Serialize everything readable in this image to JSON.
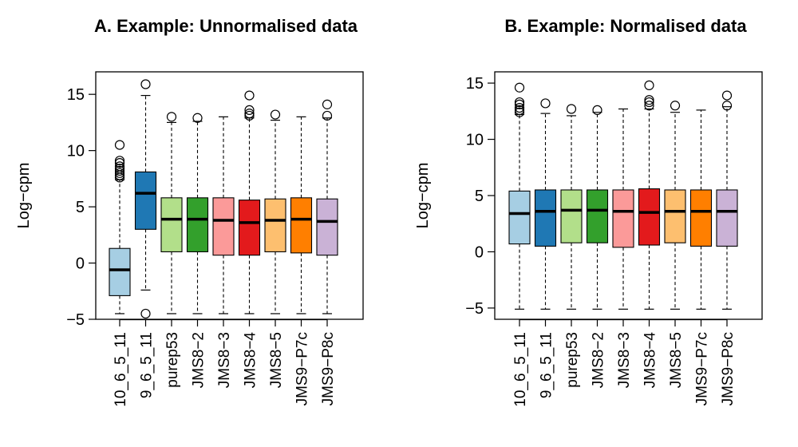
{
  "chart_data": [
    {
      "type": "box",
      "title": "A. Example: Unnormalised data",
      "ylabel": "Log−cpm",
      "ylim": [
        -5,
        17
      ],
      "yticks": [
        -5,
        0,
        5,
        10,
        15
      ],
      "ytick_labels": [
        "−5",
        "0",
        "5",
        "10",
        "15"
      ],
      "categories": [
        "10_6_5_11",
        "9_6_5_11",
        "purep53",
        "JMS8−2",
        "JMS8−3",
        "JMS8−4",
        "JMS8−5",
        "JMS9−P7c",
        "JMS9−P8c"
      ],
      "colors": [
        "#A6CEE3",
        "#1F78B4",
        "#B2DF8A",
        "#33A02C",
        "#FB9A99",
        "#E31A1C",
        "#FDBF6F",
        "#FF7F00",
        "#CAB2D6"
      ],
      "boxes": [
        {
          "low": -4.5,
          "q1": -2.9,
          "median": -0.6,
          "q3": 1.3,
          "high": 7.4,
          "outliers": [
            7.6,
            7.8,
            8.0,
            8.2,
            8.4,
            8.6,
            8.9,
            9.1,
            10.5
          ]
        },
        {
          "low": -2.4,
          "q1": 3.0,
          "median": 6.2,
          "q3": 8.1,
          "high": 14.9,
          "outliers": [
            -4.5,
            15.9
          ]
        },
        {
          "low": -4.5,
          "q1": 1.0,
          "median": 3.9,
          "q3": 5.8,
          "high": 12.5,
          "outliers": [
            13.0
          ]
        },
        {
          "low": -4.5,
          "q1": 1.0,
          "median": 3.9,
          "q3": 5.8,
          "high": 12.6,
          "outliers": [
            12.9
          ]
        },
        {
          "low": -4.5,
          "q1": 0.7,
          "median": 3.8,
          "q3": 5.8,
          "high": 13.0,
          "outliers": []
        },
        {
          "low": -4.5,
          "q1": 0.7,
          "median": 3.6,
          "q3": 5.6,
          "high": 12.9,
          "outliers": [
            13.1,
            13.3,
            13.6,
            14.9
          ]
        },
        {
          "low": -4.5,
          "q1": 1.0,
          "median": 3.8,
          "q3": 5.7,
          "high": 12.7,
          "outliers": [
            13.2
          ]
        },
        {
          "low": -4.5,
          "q1": 0.9,
          "median": 3.9,
          "q3": 5.8,
          "high": 13.0,
          "outliers": []
        },
        {
          "low": -4.5,
          "q1": 0.7,
          "median": 3.7,
          "q3": 5.7,
          "high": 12.9,
          "outliers": [
            13.1,
            14.1
          ]
        }
      ]
    },
    {
      "type": "box",
      "title": "B. Example: Normalised data",
      "ylabel": "Log−cpm",
      "ylim": [
        -6,
        16
      ],
      "yticks": [
        -5,
        0,
        5,
        10,
        15
      ],
      "ytick_labels": [
        "−5",
        "0",
        "5",
        "10",
        "15"
      ],
      "categories": [
        "10_6_5_11",
        "9_6_5_11",
        "purep53",
        "JMS8−2",
        "JMS8−3",
        "JMS8−4",
        "JMS8−5",
        "JMS9−P7c",
        "JMS9−P8c"
      ],
      "colors": [
        "#A6CEE3",
        "#1F78B4",
        "#B2DF8A",
        "#33A02C",
        "#FB9A99",
        "#E31A1C",
        "#FDBF6F",
        "#FF7F00",
        "#CAB2D6"
      ],
      "boxes": [
        {
          "low": -5.1,
          "q1": 0.7,
          "median": 3.4,
          "q3": 5.4,
          "high": 12.2,
          "outliers": [
            12.4,
            12.6,
            12.8,
            13.1,
            13.3,
            14.6
          ]
        },
        {
          "low": -5.1,
          "q1": 0.5,
          "median": 3.6,
          "q3": 5.5,
          "high": 12.3,
          "outliers": [
            13.2
          ]
        },
        {
          "low": -5.1,
          "q1": 0.8,
          "median": 3.7,
          "q3": 5.5,
          "high": 12.1,
          "outliers": [
            12.7
          ]
        },
        {
          "low": -5.1,
          "q1": 0.8,
          "median": 3.7,
          "q3": 5.5,
          "high": 12.4,
          "outliers": [
            12.6
          ]
        },
        {
          "low": -5.1,
          "q1": 0.4,
          "median": 3.6,
          "q3": 5.5,
          "high": 12.7,
          "outliers": []
        },
        {
          "low": -5.1,
          "q1": 0.6,
          "median": 3.5,
          "q3": 5.6,
          "high": 12.7,
          "outliers": [
            13.0,
            13.3,
            13.5,
            14.8
          ]
        },
        {
          "low": -5.1,
          "q1": 0.8,
          "median": 3.6,
          "q3": 5.5,
          "high": 12.4,
          "outliers": [
            13.0
          ]
        },
        {
          "low": -5.1,
          "q1": 0.5,
          "median": 3.6,
          "q3": 5.5,
          "high": 12.6,
          "outliers": []
        },
        {
          "low": -5.1,
          "q1": 0.5,
          "median": 3.6,
          "q3": 5.5,
          "high": 12.9,
          "outliers": [
            13.0,
            13.9
          ]
        }
      ]
    }
  ]
}
